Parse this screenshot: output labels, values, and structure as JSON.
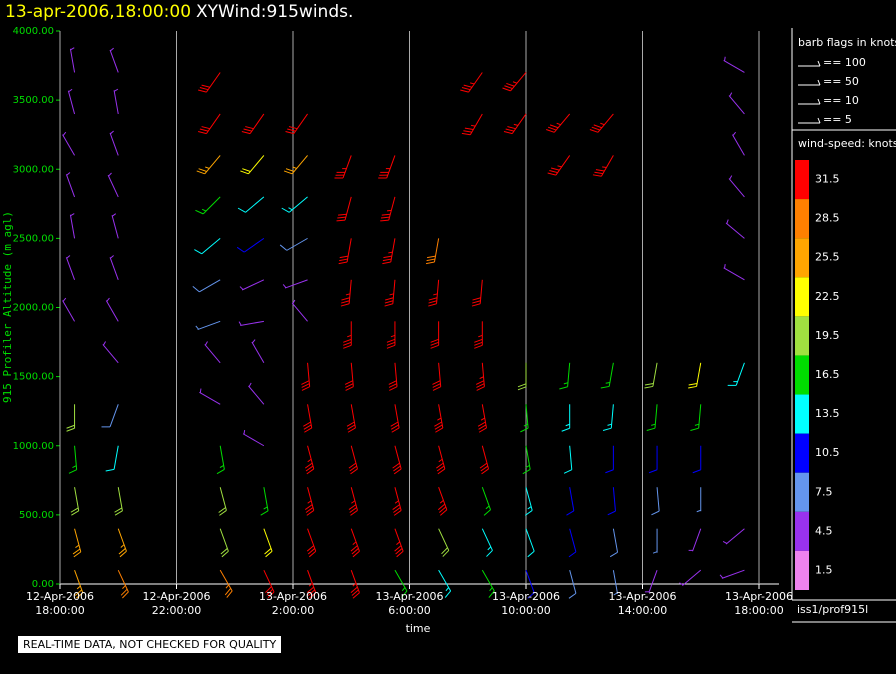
{
  "chart_data": {
    "type": "barb",
    "title": "13-apr-2006,18:00:00",
    "subtitle": "XYWind:915winds.",
    "ylabel": "915 Profiler Altitude (m agl)",
    "xlabel": "time",
    "ylim": [
      0,
      4000
    ],
    "yticks": [
      {
        "value": 0,
        "label": "0.00"
      },
      {
        "value": 500,
        "label": "500.00"
      },
      {
        "value": 1000,
        "label": "1000.00"
      },
      {
        "value": 1500,
        "label": "1500.00"
      },
      {
        "value": 2000,
        "label": "2000.00"
      },
      {
        "value": 2500,
        "label": "2500.00"
      },
      {
        "value": 3000,
        "label": "3000.00"
      },
      {
        "value": 3500,
        "label": "3500.00"
      },
      {
        "value": 4000,
        "label": "4000.00"
      }
    ],
    "xlim": [
      0,
      24
    ],
    "xticks": [
      {
        "value": 0,
        "label": "12-Apr-2006\n18:00:00"
      },
      {
        "value": 4,
        "label": "12-Apr-2006\n22:00:00"
      },
      {
        "value": 8,
        "label": "13-Apr-2006\n2:00:00"
      },
      {
        "value": 12,
        "label": "13-Apr-2006\n6:00:00"
      },
      {
        "value": 16,
        "label": "13-Apr-2006\n10:00:00"
      },
      {
        "value": 20,
        "label": "13-Apr-2006\n14:00:00"
      },
      {
        "value": 24,
        "label": "13-Apr-2006\n18:00:00"
      }
    ],
    "grid": true,
    "x": [
      0.5,
      2,
      5.5,
      7,
      8.5,
      10,
      11.5,
      13,
      14.5,
      16,
      17.5,
      19,
      20.5,
      22,
      23.5
    ],
    "levels": [
      100,
      400,
      700,
      1000,
      1300,
      1600,
      1900,
      2200,
      2500,
      2800,
      3100,
      3400,
      3700
    ],
    "speed": [
      [
        26,
        25,
        20,
        17,
        19,
        null,
        4,
        4,
        3,
        4,
        3,
        4,
        3
      ],
      [
        27,
        24,
        18,
        12,
        8,
        4,
        5,
        4,
        4,
        3,
        4,
        3,
        4
      ],
      [
        27,
        19,
        18,
        16,
        4,
        4,
        6,
        8,
        12,
        15,
        24,
        30,
        32
      ],
      [
        32,
        22,
        17,
        5,
        4,
        3,
        4,
        5,
        9,
        12,
        22,
        30,
        null
      ],
      [
        33,
        32,
        33,
        33,
        32,
        30,
        4,
        5,
        8,
        14,
        26,
        32,
        null
      ],
      [
        33,
        33,
        33,
        32,
        32,
        32,
        33,
        33,
        32,
        32,
        33,
        null,
        null
      ],
      [
        17,
        33,
        33,
        32,
        32,
        32,
        33,
        33,
        33,
        33,
        33,
        null,
        null
      ],
      [
        14,
        19,
        33,
        33,
        33,
        32,
        32,
        33,
        28,
        null,
        null,
        null,
        null
      ],
      [
        16,
        14,
        17,
        32,
        33,
        33,
        33,
        32,
        null,
        null,
        null,
        33,
        33
      ],
      [
        10,
        12,
        14,
        16,
        17,
        19,
        null,
        null,
        null,
        null,
        null,
        33,
        33
      ],
      [
        8,
        10,
        11,
        12,
        14,
        17,
        null,
        null,
        null,
        null,
        33,
        33,
        null
      ],
      [
        6,
        8,
        10,
        11,
        13,
        16,
        null,
        null,
        null,
        null,
        33,
        33,
        null
      ],
      [
        5,
        6,
        8,
        10,
        16,
        20,
        null,
        null,
        null,
        null,
        null,
        null,
        null
      ],
      [
        4,
        5,
        6,
        10,
        15,
        22,
        null,
        null,
        null,
        null,
        null,
        null,
        null
      ],
      [
        5,
        4,
        null,
        null,
        null,
        14,
        null,
        4,
        4,
        4,
        4,
        4,
        4
      ]
    ],
    "direction": [
      [
        160,
        165,
        170,
        175,
        180,
        null,
        330,
        340,
        350,
        340,
        330,
        345,
        350
      ],
      [
        155,
        160,
        170,
        190,
        200,
        320,
        330,
        340,
        345,
        335,
        340,
        350,
        340
      ],
      [
        150,
        160,
        165,
        170,
        300,
        320,
        250,
        240,
        230,
        225,
        220,
        215,
        215
      ],
      [
        155,
        160,
        170,
        300,
        320,
        330,
        260,
        245,
        235,
        230,
        220,
        215,
        null
      ],
      [
        160,
        160,
        165,
        165,
        170,
        175,
        320,
        250,
        240,
        230,
        220,
        215,
        null
      ],
      [
        160,
        160,
        165,
        165,
        170,
        175,
        180,
        185,
        190,
        195,
        200,
        null,
        null
      ],
      [
        150,
        160,
        165,
        165,
        170,
        175,
        180,
        185,
        190,
        195,
        200,
        null,
        null
      ],
      [
        150,
        155,
        160,
        165,
        170,
        175,
        180,
        185,
        190,
        null,
        null,
        null,
        null
      ],
      [
        150,
        155,
        160,
        165,
        170,
        175,
        180,
        185,
        null,
        null,
        null,
        210,
        215
      ],
      [
        160,
        160,
        165,
        170,
        175,
        180,
        null,
        null,
        null,
        null,
        null,
        215,
        220
      ],
      [
        165,
        165,
        170,
        175,
        180,
        185,
        null,
        null,
        null,
        null,
        215,
        220,
        null
      ],
      [
        170,
        170,
        175,
        180,
        185,
        190,
        null,
        null,
        null,
        null,
        210,
        220,
        null
      ],
      [
        200,
        180,
        175,
        180,
        185,
        190,
        null,
        null,
        null,
        null,
        null,
        null,
        null
      ],
      [
        230,
        200,
        180,
        180,
        185,
        190,
        null,
        null,
        null,
        null,
        null,
        null,
        null
      ],
      [
        250,
        230,
        null,
        null,
        null,
        200,
        null,
        300,
        310,
        320,
        330,
        320,
        300
      ]
    ],
    "barb_legend": {
      "title": "barb flags in knots",
      "items": [
        "== 100",
        "== 50",
        "== 10",
        "== 5"
      ]
    },
    "colorbar": {
      "title": "wind-speed: knots",
      "levels": [
        31.5,
        28.5,
        25.5,
        22.5,
        19.5,
        16.5,
        13.5,
        10.5,
        7.5,
        4.5,
        1.5
      ],
      "colors": [
        "#ff0000",
        "#ff8000",
        "#ffa500",
        "#ffff00",
        "#a0e040",
        "#00dd00",
        "#00ffff",
        "#0000ff",
        "#6495ed",
        "#9932ee",
        "#ee82ee"
      ]
    },
    "source": "iss1/prof915l",
    "footer": "REAL-TIME DATA, NOT CHECKED FOR QUALITY"
  }
}
